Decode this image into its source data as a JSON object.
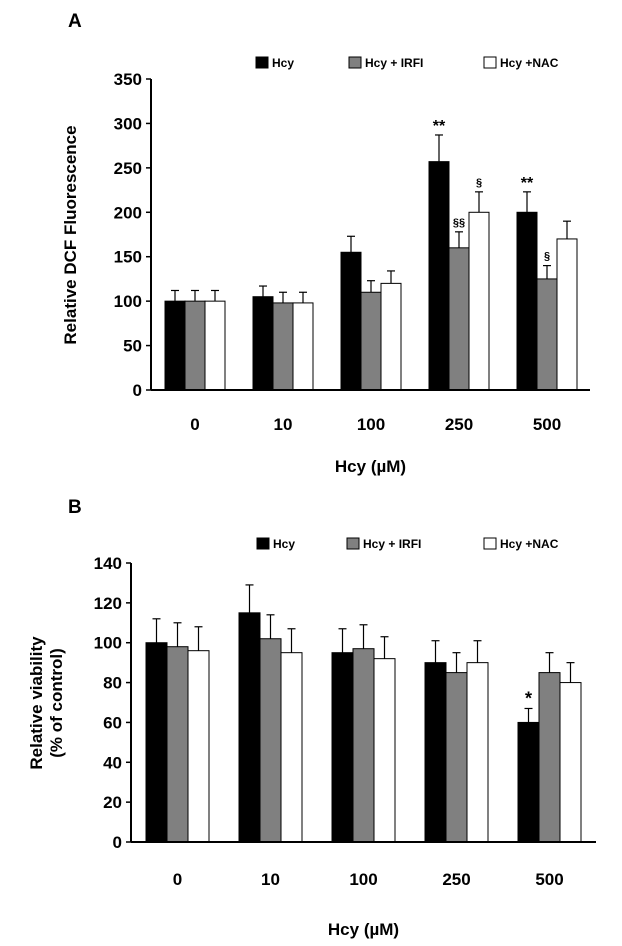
{
  "colors": {
    "Hcy": "#000000",
    "Hcy + IRFI": "#808080",
    "Hcy +NAC": "#ffffff",
    "axis": "#000000"
  },
  "chart_data": [
    {
      "panel": "A",
      "type": "bar",
      "title": "",
      "xlabel": "Hcy (µM)",
      "ylabel": "Relative DCF Fluorescence",
      "ylim": [
        0,
        350
      ],
      "yticks": [
        0,
        50,
        100,
        150,
        200,
        250,
        300,
        350
      ],
      "categories": [
        "0",
        "10",
        "100",
        "250",
        "500"
      ],
      "legend_position": "top",
      "series": [
        {
          "name": "Hcy",
          "values": [
            100,
            105,
            155,
            257,
            200
          ],
          "errors": [
            12,
            12,
            18,
            30,
            23
          ]
        },
        {
          "name": "Hcy + IRFI",
          "values": [
            100,
            98,
            110,
            160,
            125
          ],
          "errors": [
            12,
            12,
            13,
            18,
            15
          ]
        },
        {
          "name": "Hcy +NAC",
          "values": [
            100,
            98,
            120,
            200,
            170
          ],
          "errors": [
            12,
            12,
            14,
            23,
            20
          ]
        }
      ],
      "annotations": [
        {
          "category": "250",
          "series": "Hcy",
          "text": "**"
        },
        {
          "category": "250",
          "series": "Hcy + IRFI",
          "text": "§§"
        },
        {
          "category": "250",
          "series": "Hcy +NAC",
          "text": "§"
        },
        {
          "category": "500",
          "series": "Hcy",
          "text": "**"
        },
        {
          "category": "500",
          "series": "Hcy + IRFI",
          "text": "§"
        }
      ]
    },
    {
      "panel": "B",
      "type": "bar",
      "title": "",
      "xlabel": "Hcy (µM)",
      "ylabel": [
        "Relative viability",
        "(% of control)"
      ],
      "ylim": [
        0,
        140
      ],
      "yticks": [
        0,
        20,
        40,
        60,
        80,
        100,
        120,
        140
      ],
      "categories": [
        "0",
        "10",
        "100",
        "250",
        "500"
      ],
      "legend_position": "top",
      "series": [
        {
          "name": "Hcy",
          "values": [
            100,
            115,
            95,
            90,
            60
          ],
          "errors": [
            12,
            14,
            12,
            11,
            7
          ]
        },
        {
          "name": "Hcy + IRFI",
          "values": [
            98,
            102,
            97,
            85,
            85
          ],
          "errors": [
            12,
            12,
            12,
            10,
            10
          ]
        },
        {
          "name": "Hcy +NAC",
          "values": [
            96,
            95,
            92,
            90,
            80
          ],
          "errors": [
            12,
            12,
            11,
            11,
            10
          ]
        }
      ],
      "annotations": [
        {
          "category": "500",
          "series": "Hcy",
          "text": "*"
        }
      ]
    }
  ]
}
